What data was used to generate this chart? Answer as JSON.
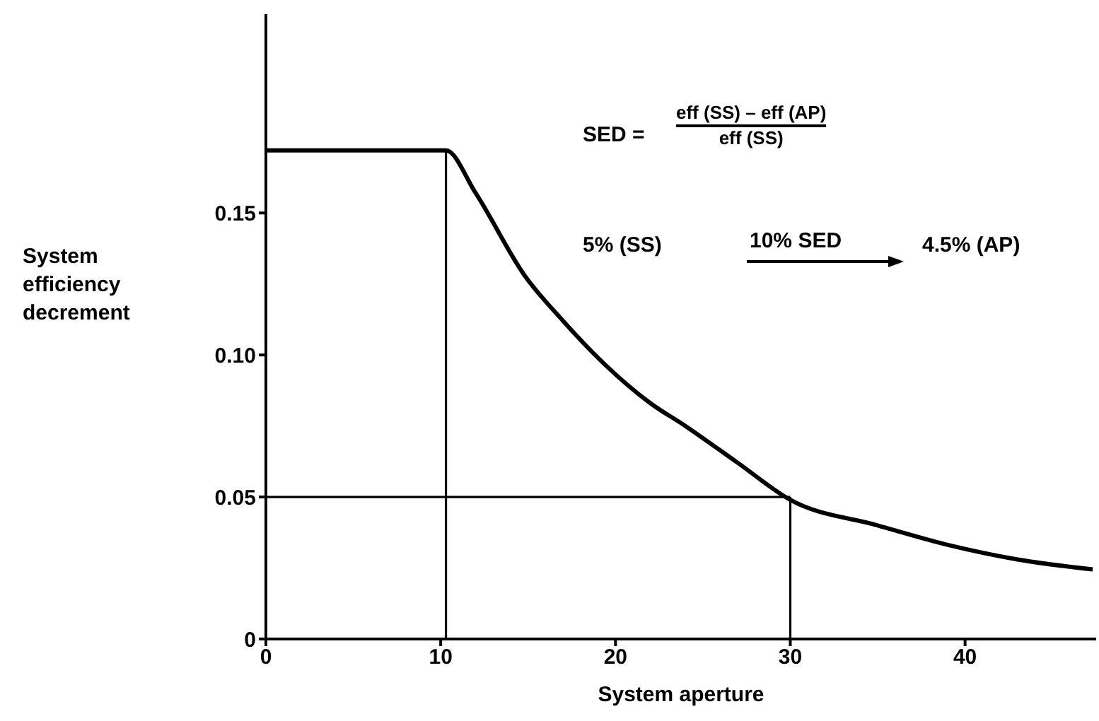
{
  "chart_data": {
    "type": "line",
    "xlabel": "System aperture",
    "ylabel": "System efficiency decrement",
    "xlim": [
      0,
      47.5
    ],
    "ylim": [
      0,
      0.22
    ],
    "xticks": [
      0,
      10,
      20,
      30,
      40
    ],
    "yticks": [
      0,
      0.05,
      {
        "value": 0.1,
        "label": "0.10"
      },
      0.15
    ],
    "series": [
      {
        "color": "#000000",
        "x": [
          0,
          10.3,
          12,
          14.8,
          17,
          19.4,
          22,
          24,
          27,
          30,
          35,
          39.1,
          43,
          47.3
        ],
        "values": [
          0.172,
          0.172,
          0.157,
          0.128,
          0.112,
          0.0966,
          0.083,
          0.075,
          0.062,
          0.049,
          0.04,
          0.033,
          0.028,
          0.0245
        ]
      },
      {
        "color": "#000000",
        "x": [
          10.3,
          10.3
        ],
        "values": [
          0,
          0.172
        ]
      },
      {
        "color": "#000000",
        "x": [
          0,
          30
        ],
        "values": [
          0.05,
          0.05
        ]
      },
      {
        "color": "#000000",
        "x": [
          30,
          30
        ],
        "values": [
          0,
          0.05
        ]
      }
    ],
    "annotations": [
      "SED =",
      "eff (SS) – eff (AP)",
      "eff (SS)",
      "5% (SS)",
      "10% SED",
      "4.5% (AP)"
    ],
    "marker": "none",
    "line_style": "solid"
  }
}
